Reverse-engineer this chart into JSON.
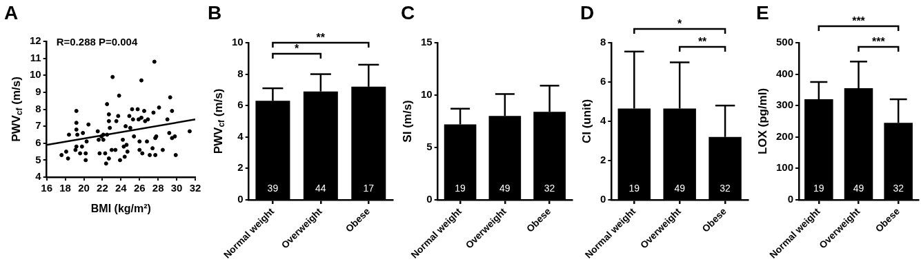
{
  "chart_data": [
    {
      "type": "scatter",
      "title": "A",
      "xlabel": "BMI (kg/m²)",
      "ylabel": "PWV$_{cf}$ (m/s)",
      "xlim": [
        16,
        32
      ],
      "xticks": [
        16,
        18,
        20,
        22,
        24,
        26,
        28,
        30,
        32
      ],
      "ylim": [
        4,
        12
      ],
      "yticks": [
        4,
        5,
        6,
        7,
        8,
        9,
        10,
        11,
        12
      ],
      "grid": false,
      "annotations": [
        "R=0.288 P=0.004"
      ],
      "series": [
        {
          "type": "scatter",
          "marker": "circle",
          "color": "#000000",
          "x": [
            17.6,
            18.1,
            18.3,
            18.4,
            19.2,
            19.2,
            19.2,
            19.3,
            19.2,
            19.1,
            19.6,
            19.9,
            19.8,
            20.2,
            20.2,
            20.3,
            20.5,
            21.5,
            21.7,
            21.6,
            21.9,
            22.1,
            22.1,
            22.3,
            22.4,
            22.5,
            22.5,
            22.7,
            22.7,
            22.8,
            22.7,
            23.1,
            23.0,
            23.4,
            23.5,
            23.7,
            23.8,
            23.9,
            24.2,
            24.3,
            24.4,
            24.5,
            24.7,
            24.6,
            24.9,
            25.0,
            25.2,
            25.3,
            25.4,
            25.8,
            25.9,
            26.0,
            26.0,
            26.2,
            26.2,
            26.3,
            26.5,
            26.6,
            26.8,
            26.9,
            27.1,
            27.4,
            27.5,
            27.6,
            27.7,
            27.8,
            27.7,
            28.1,
            28.5,
            29.0,
            29.2,
            29.3,
            29.5,
            29.5,
            29.8,
            29.9,
            31.4
          ],
          "values": [
            5.3,
            5.5,
            5.1,
            6.5,
            7.9,
            7.2,
            6.8,
            6.5,
            5.8,
            5.6,
            5.4,
            6.6,
            5.8,
            5.4,
            5.0,
            6.1,
            7.1,
            6.7,
            5.4,
            6.2,
            6.4,
            6.5,
            6.2,
            5.4,
            4.8,
            8.3,
            6.5,
            7.3,
            5.1,
            6.9,
            7.7,
            9.9,
            5.6,
            5.6,
            7.3,
            7.6,
            8.8,
            5.0,
            6.2,
            5.8,
            5.2,
            7.0,
            5.5,
            5.9,
            7.6,
            6.9,
            8.0,
            7.4,
            6.4,
            8.0,
            7.4,
            6.1,
            5.6,
            9.7,
            7.5,
            5.4,
            7.9,
            7.3,
            6.1,
            7.4,
            5.3,
            5.7,
            7.8,
            10.8,
            6.3,
            6.4,
            5.3,
            8.1,
            5.6,
            7.4,
            6.6,
            8.7,
            6.3,
            7.9,
            6.4,
            5.3,
            6.7
          ]
        },
        {
          "type": "line",
          "marker": "none",
          "color": "#000000",
          "x": [
            16,
            32
          ],
          "values": [
            5.9,
            7.4
          ]
        }
      ]
    },
    {
      "type": "bar",
      "title": "B",
      "ylabel": "PWV$_{cf}$ (m/s)",
      "categories": [
        "Normal weight",
        "Overweight",
        "Obese"
      ],
      "values": [
        6.3,
        6.9,
        7.2
      ],
      "errors": [
        [
          6.3,
          7.1
        ],
        [
          6.9,
          8.0
        ],
        [
          7.2,
          8.6
        ]
      ],
      "color": "#000000",
      "ylim": [
        0,
        10
      ],
      "yticks": [
        0,
        2,
        4,
        6,
        8,
        10
      ],
      "grid": false,
      "annotations": [
        "*",
        "**",
        "39",
        "44",
        "17"
      ]
    },
    {
      "type": "bar",
      "title": "C",
      "ylabel": "SI (m/s)",
      "categories": [
        "Normal weight",
        "Overweight",
        "Obese"
      ],
      "values": [
        7.2,
        8.0,
        8.4
      ],
      "errors": [
        [
          7.2,
          8.7
        ],
        [
          8.0,
          10.1
        ],
        [
          8.4,
          10.9
        ]
      ],
      "color": "#000000",
      "ylim": [
        0,
        15
      ],
      "yticks": [
        0,
        5,
        10,
        15
      ],
      "grid": false,
      "annotations": [
        "19",
        "49",
        "32"
      ]
    },
    {
      "type": "bar",
      "title": "D",
      "ylabel": "CI (unit)",
      "categories": [
        "Normal weight",
        "Overweight",
        "Obese"
      ],
      "values": [
        4.65,
        4.65,
        3.2
      ],
      "errors": [
        [
          4.65,
          7.55
        ],
        [
          4.65,
          7.0
        ],
        [
          3.2,
          4.8
        ]
      ],
      "color": "#000000",
      "ylim": [
        0,
        8
      ],
      "yticks": [
        0,
        2,
        4,
        6,
        8
      ],
      "grid": false,
      "annotations": [
        "*",
        "**",
        "19",
        "49",
        "32"
      ]
    },
    {
      "type": "bar",
      "title": "E",
      "ylabel": "LOX (pg/ml)",
      "categories": [
        "Normal weight",
        "Overweight",
        "Obese"
      ],
      "values": [
        320,
        355,
        245
      ],
      "errors": [
        [
          320,
          375
        ],
        [
          355,
          440
        ],
        [
          245,
          320
        ]
      ],
      "color": "#000000",
      "ylim": [
        0,
        500
      ],
      "yticks": [
        0,
        100,
        200,
        300,
        400,
        500
      ],
      "grid": false,
      "annotations": [
        "***",
        "***",
        "19",
        "49",
        "32"
      ]
    }
  ]
}
